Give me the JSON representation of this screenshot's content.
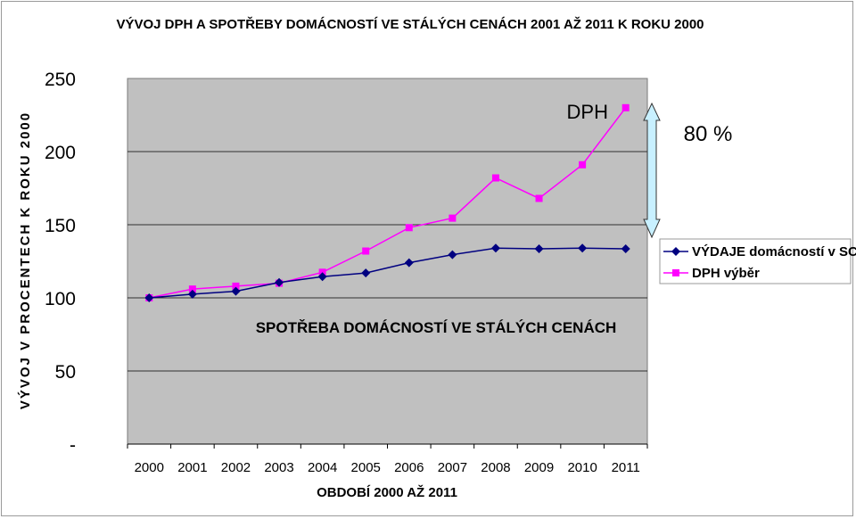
{
  "chart_data": {
    "type": "line",
    "title": "VÝVOJ DPH A SPOTŘEBY DOMÁCNOSTÍ VE STÁLÝCH CENÁCH 2001 AŽ 2011 K ROKU 2000",
    "xlabel": "OBDOBÍ 2000 AŽ 2011",
    "ylabel": "VÝVOJ V PROCENTECH K ROKU 2000",
    "categories": [
      "2000",
      "2001",
      "2002",
      "2003",
      "2004",
      "2005",
      "2006",
      "2007",
      "2008",
      "2009",
      "2010",
      "2011"
    ],
    "yticks": [
      "-",
      "50",
      "100",
      "150",
      "200",
      "250"
    ],
    "ylim": [
      0,
      250
    ],
    "series": [
      {
        "name": "VÝDAJE domácností v SC",
        "color": "#000080",
        "marker": "diamond",
        "values": [
          100,
          102.5,
          104.5,
          110.5,
          114.5,
          117,
          124,
          129.5,
          134,
          133.5,
          134,
          133.5
        ]
      },
      {
        "name": "DPH výběr",
        "color": "#ff00ff",
        "marker": "square",
        "values": [
          100,
          106,
          108,
          110,
          117.5,
          132,
          148,
          154.5,
          182,
          168,
          191,
          230
        ]
      }
    ],
    "annotations": {
      "dph": "DPH",
      "spotreba": "SPOTŘEBA DOMÁCNOSTÍ VE STÁLÝCH CENÁCH",
      "gap": "80 %"
    },
    "legend_position": "right",
    "grid": "horizontal",
    "plot_background": "#c0c0c0",
    "arrow_color": "#c8f0ff"
  }
}
